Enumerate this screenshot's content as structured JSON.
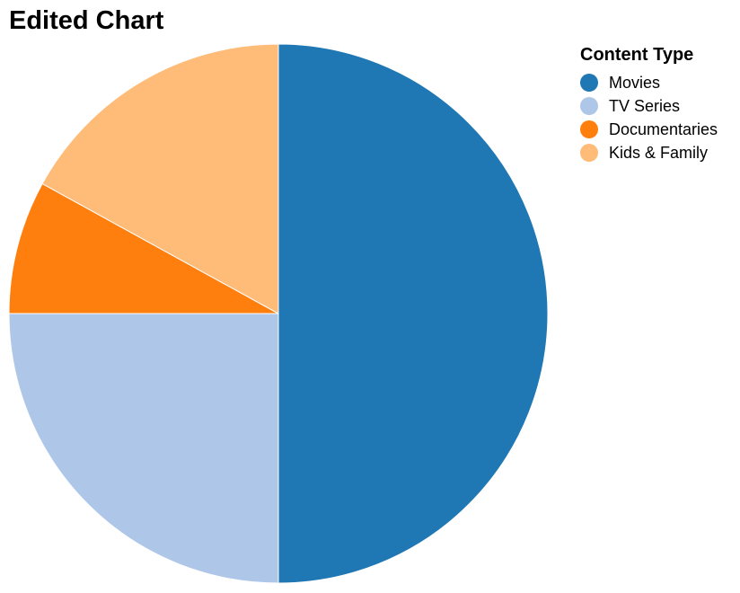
{
  "chart_data": {
    "type": "pie",
    "title": "Edited Chart",
    "legend_title": "Content Type",
    "legend_position": "top-right",
    "categories": [
      "Movies",
      "TV Series",
      "Documentaries",
      "Kids & Family"
    ],
    "values": [
      50,
      25,
      8,
      17
    ],
    "colors": [
      "#1f77b4",
      "#aec7e8",
      "#ff7f0e",
      "#ffbb78"
    ]
  }
}
